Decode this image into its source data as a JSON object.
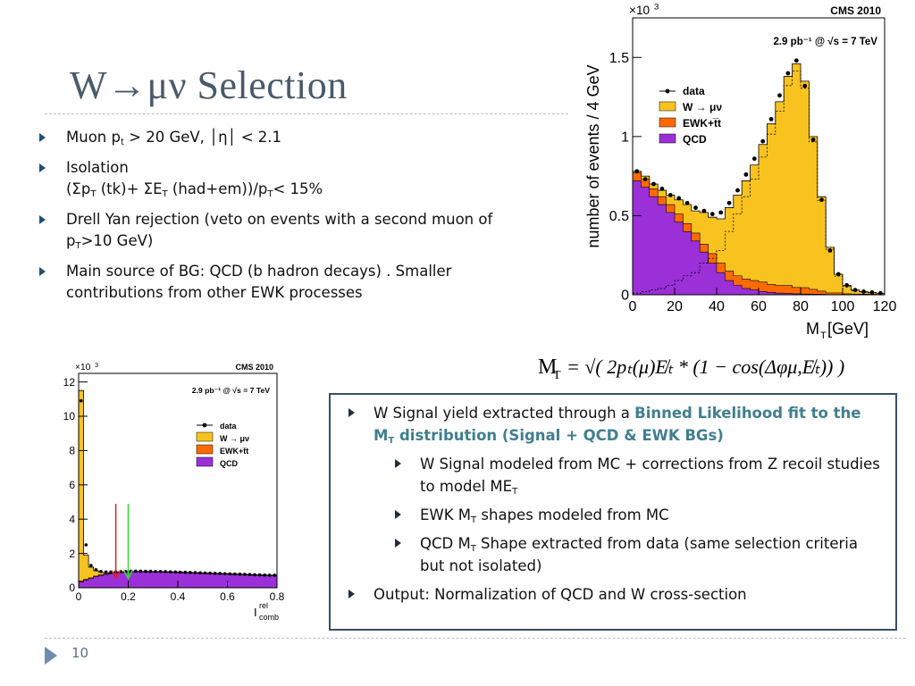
{
  "slide": {
    "title": "W→μν Selection",
    "page_number": "10"
  },
  "bullets": [
    {
      "pre": "Muon p",
      "sub": "t",
      "post": " > 20 GeV, │η│ < 2.1"
    },
    {
      "line1": "Isolation",
      "line2_a": "(Σp",
      "line2_sub1": "T",
      "line2_b": " (tk)+ ΣE",
      "line2_sub2": "T",
      "line2_c": " (had+em))/p",
      "line2_sub3": "T",
      "line2_d": "< 15%"
    },
    {
      "pre": "Drell Yan rejection (veto on events with a second muon of p",
      "sub": "T",
      "post": ">10 GeV)"
    },
    {
      "text": "Main source of BG:  QCD  (b hadron decays) . Smaller contributions from other EWK processes"
    }
  ],
  "formula": {
    "lhs": "M",
    "lhs_sub": "T",
    "rhs": "= √( 2pₜ(μ)E̸ₜ * (1 − cos(Δφμ,E̸ₜ)) )"
  },
  "box": {
    "l1": {
      "a": "W Signal yield extracted through a ",
      "hl_a": "Binned Likelihood fit to the M",
      "hl_sub": "T",
      "hl_b": " distribution  (Signal + QCD & EWK BGs)"
    },
    "l2a": {
      "a": "W Signal modeled from MC  + corrections from Z recoil studies to model ME",
      "sub": "T"
    },
    "l2b": {
      "a": "EWK  M",
      "sub": "T",
      "b": " shapes modeled  from MC"
    },
    "l2c": {
      "a": "QCD M",
      "sub": "T",
      "b": " Shape extracted from data (same selection criteria but not isolated)"
    },
    "l1b": {
      "a": "Output:  Normalization of QCD and W cross-section"
    }
  },
  "colors": {
    "signal": "#f9c31f",
    "ewk": "#ff6a00",
    "qcd": "#9b30d9",
    "arrow_red": "#e0201a",
    "arrow_green": "#33dd33"
  },
  "chart_data": [
    {
      "type": "area",
      "title": "",
      "top_right_label": "CMS 2010",
      "lumi_label": "2.9 pb⁻¹  @ √s = 7 TeV",
      "xlabel": "M",
      "xlabel_sub": "T",
      "xlabel_unit": " [GeV]",
      "ylabel": "number of events / 4 GeV",
      "y_multiplier": "×10",
      "y_multiplier_exp": "3",
      "xlim": [
        0,
        120
      ],
      "ylim": [
        0,
        1.75
      ],
      "xticks": [
        "0",
        "20",
        "40",
        "60",
        "80",
        "100",
        "120"
      ],
      "yticks": [
        "0",
        "0.5",
        "1",
        "1.5"
      ],
      "legend": [
        {
          "name": "data",
          "kind": "marker"
        },
        {
          "name": "W → μν",
          "kind": "fill",
          "color": "#f9c31f"
        },
        {
          "name": "EWK+t̅t",
          "kind": "fill",
          "color": "#ff6a00"
        },
        {
          "name": "QCD",
          "kind": "fill",
          "color": "#9b30d9"
        }
      ],
      "bin_width": 4,
      "bin_edges_start": 0,
      "qcd": [
        0.72,
        0.68,
        0.62,
        0.57,
        0.52,
        0.46,
        0.4,
        0.34,
        0.27,
        0.2,
        0.14,
        0.09,
        0.06,
        0.04,
        0.03,
        0.02,
        0.015,
        0.01,
        0.008,
        0.006,
        0.005,
        0.004,
        0.003,
        0.002,
        0.002,
        0.001,
        0.001,
        0.001,
        0.001,
        0.0
      ],
      "ewk": [
        0.05,
        0.05,
        0.05,
        0.05,
        0.05,
        0.05,
        0.05,
        0.05,
        0.05,
        0.06,
        0.06,
        0.06,
        0.06,
        0.06,
        0.06,
        0.06,
        0.05,
        0.05,
        0.05,
        0.04,
        0.04,
        0.03,
        0.02,
        0.01,
        0.01,
        0.005,
        0.004,
        0.003,
        0.002,
        0.002
      ],
      "total": [
        0.78,
        0.75,
        0.7,
        0.66,
        0.63,
        0.6,
        0.57,
        0.53,
        0.52,
        0.49,
        0.48,
        0.55,
        0.63,
        0.72,
        0.82,
        0.95,
        1.08,
        1.22,
        1.38,
        1.46,
        1.35,
        1.0,
        0.62,
        0.3,
        0.13,
        0.06,
        0.03,
        0.02,
        0.015,
        0.01
      ],
      "data": [
        0.78,
        0.73,
        0.7,
        0.67,
        0.63,
        0.61,
        0.58,
        0.55,
        0.53,
        0.51,
        0.52,
        0.58,
        0.66,
        0.76,
        0.86,
        0.97,
        1.11,
        1.26,
        1.4,
        1.48,
        1.32,
        0.98,
        0.6,
        0.28,
        0.13,
        0.06,
        0.03,
        0.02,
        0.015,
        0.01
      ]
    },
    {
      "type": "area",
      "title": "",
      "top_right_label": "CMS 2010",
      "lumi_label": "2.9 pb⁻¹  @ √s = 7 TeV",
      "xlabel": "I",
      "xlabel_sup": "rel",
      "xlabel_sub": "comb",
      "ylabel": "",
      "y_multiplier": "×10",
      "y_multiplier_exp": "3",
      "xlim": [
        0,
        0.8
      ],
      "ylim": [
        0,
        12.5
      ],
      "xticks": [
        "0",
        "0.2",
        "0.4",
        "0.6",
        "0.8"
      ],
      "yticks": [
        "0",
        "2",
        "4",
        "6",
        "8",
        "10",
        "12"
      ],
      "legend": [
        {
          "name": "data",
          "kind": "marker"
        },
        {
          "name": "W → μν",
          "kind": "fill",
          "color": "#f9c31f"
        },
        {
          "name": "EWK+t̅t",
          "kind": "fill",
          "color": "#ff6a00"
        },
        {
          "name": "QCD",
          "kind": "fill",
          "color": "#9b30d9"
        }
      ],
      "bin_width": 0.02,
      "qcd": [
        0.35,
        0.45,
        0.55,
        0.65,
        0.72,
        0.78,
        0.82,
        0.86,
        0.89,
        0.9,
        0.91,
        0.92,
        0.92,
        0.92,
        0.92,
        0.91,
        0.91,
        0.9,
        0.9,
        0.89,
        0.88,
        0.87,
        0.86,
        0.85,
        0.84,
        0.83,
        0.82,
        0.81,
        0.8,
        0.79,
        0.78,
        0.77,
        0.76,
        0.75,
        0.74,
        0.73,
        0.72,
        0.71,
        0.7,
        0.7
      ],
      "ewk": [
        0.05,
        0.04,
        0.03,
        0.03,
        0.03,
        0.03,
        0.03,
        0.03,
        0.03,
        0.03,
        0.03,
        0.03,
        0.03,
        0.03,
        0.03,
        0.03,
        0.03,
        0.03,
        0.03,
        0.03,
        0.03,
        0.03,
        0.03,
        0.03,
        0.03,
        0.03,
        0.03,
        0.03,
        0.03,
        0.03,
        0.03,
        0.03,
        0.03,
        0.03,
        0.03,
        0.03,
        0.03,
        0.03,
        0.03,
        0.03
      ],
      "total": [
        11.5,
        1.9,
        1.2,
        1.0,
        0.9,
        0.88,
        0.88,
        0.9,
        0.92,
        0.93,
        0.94,
        0.95,
        0.95,
        0.95,
        0.95,
        0.94,
        0.94,
        0.93,
        0.93,
        0.92,
        0.91,
        0.9,
        0.89,
        0.88,
        0.87,
        0.86,
        0.85,
        0.84,
        0.83,
        0.82,
        0.81,
        0.8,
        0.79,
        0.78,
        0.77,
        0.76,
        0.75,
        0.74,
        0.73,
        0.73
      ],
      "data": [
        10.9,
        2.5,
        1.3,
        1.05,
        0.95,
        0.92,
        0.92,
        0.93,
        0.94,
        0.95,
        0.96,
        0.97,
        0.97,
        0.96,
        0.96,
        0.95,
        0.95,
        0.94,
        0.93,
        0.92,
        0.91,
        0.9,
        0.89,
        0.88,
        0.87,
        0.86,
        0.85,
        0.84,
        0.83,
        0.82,
        0.81,
        0.8,
        0.79,
        0.78,
        0.77,
        0.76,
        0.75,
        0.74,
        0.73,
        0.73
      ],
      "cut_arrows": [
        {
          "x": 0.15,
          "color": "red"
        },
        {
          "x": 0.2,
          "color": "green"
        }
      ]
    }
  ]
}
